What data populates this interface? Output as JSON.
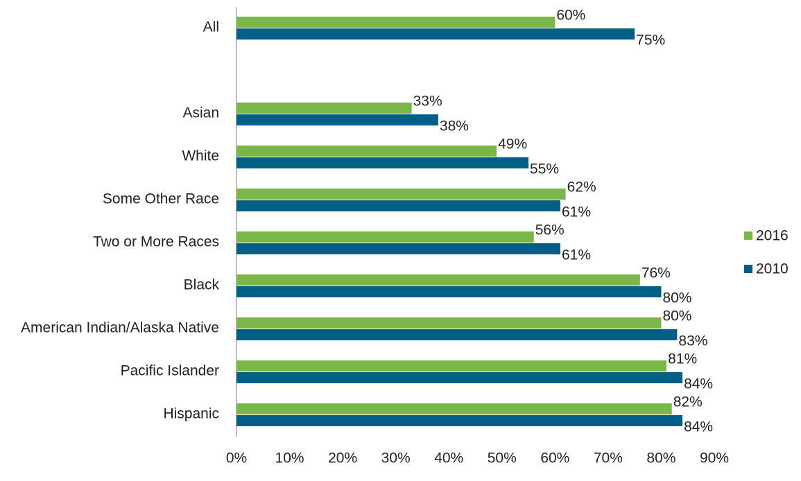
{
  "chart_data": {
    "type": "hbar",
    "categories": [
      "All",
      null,
      "Asian",
      "White",
      "Some Other Race",
      "Two or More Races",
      "Black",
      "American Indian/Alaska Native",
      "Pacific Islander",
      "Hispanic"
    ],
    "series": [
      {
        "name": "2016",
        "color": "#7ab648",
        "values": [
          60,
          null,
          33,
          49,
          62,
          56,
          76,
          80,
          81,
          82
        ],
        "value_labels": [
          "60%",
          null,
          "33%",
          "49%",
          "62%",
          "56%",
          "76%",
          "80%",
          "81%",
          "82%"
        ]
      },
      {
        "name": "2010",
        "color": "#005f87",
        "values": [
          75,
          null,
          38,
          55,
          61,
          61,
          80,
          83,
          84,
          84
        ],
        "value_labels": [
          "75%",
          null,
          "38%",
          "55%",
          "61%",
          "61%",
          "80%",
          "83%",
          "84%",
          "84%"
        ]
      }
    ],
    "xlim": [
      0,
      90
    ],
    "xticks": [
      {
        "value": 0,
        "label": "0%"
      },
      {
        "value": 10,
        "label": "10%"
      },
      {
        "value": 20,
        "label": "20%"
      },
      {
        "value": 30,
        "label": "30%"
      },
      {
        "value": 40,
        "label": "40%"
      },
      {
        "value": 50,
        "label": "50%"
      },
      {
        "value": 60,
        "label": "60%"
      },
      {
        "value": 70,
        "label": "70%"
      },
      {
        "value": 80,
        "label": "80%"
      },
      {
        "value": 90,
        "label": "90%"
      }
    ],
    "grid": false,
    "legend": "right"
  }
}
